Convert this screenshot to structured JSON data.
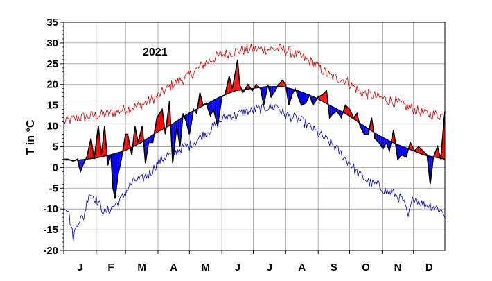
{
  "chart_data": {
    "type": "line",
    "title": "2021",
    "xlabel": "",
    "ylabel": "T in °C",
    "ylim": [
      -20,
      35
    ],
    "yticks": [
      35,
      30,
      25,
      20,
      15,
      10,
      5,
      0,
      -5,
      -10,
      -15,
      -20
    ],
    "months": [
      "J",
      "F",
      "M",
      "A",
      "M",
      "J",
      "J",
      "A",
      "S",
      "O",
      "N",
      "D"
    ],
    "grid": true,
    "colors": {
      "actual_line": "#000000",
      "above_normal_fill": "#ff0000",
      "below_normal_fill": "#0000ff",
      "record_high": "#cc0000",
      "record_low": "#0000aa",
      "grid": "#999999"
    },
    "series": [
      {
        "role": "record_high",
        "keypoints": [
          [
            1,
            11
          ],
          [
            15,
            12
          ],
          [
            30,
            12.5
          ],
          [
            45,
            13
          ],
          [
            59,
            14
          ],
          [
            75,
            15
          ],
          [
            90,
            17
          ],
          [
            105,
            20
          ],
          [
            120,
            22
          ],
          [
            135,
            25
          ],
          [
            150,
            27
          ],
          [
            165,
            28
          ],
          [
            180,
            28.5
          ],
          [
            195,
            28.5
          ],
          [
            210,
            28.5
          ],
          [
            225,
            27
          ],
          [
            240,
            25
          ],
          [
            255,
            22
          ],
          [
            270,
            21
          ],
          [
            285,
            18
          ],
          [
            300,
            17
          ],
          [
            315,
            16
          ],
          [
            330,
            14.5
          ],
          [
            345,
            13
          ],
          [
            365,
            12.5
          ]
        ]
      },
      {
        "role": "normal",
        "keypoints": [
          [
            1,
            1.8
          ],
          [
            15,
            1.8
          ],
          [
            30,
            2.2
          ],
          [
            45,
            3
          ],
          [
            59,
            4
          ],
          [
            75,
            6
          ],
          [
            90,
            8.5
          ],
          [
            105,
            10.5
          ],
          [
            120,
            13
          ],
          [
            135,
            15
          ],
          [
            150,
            17
          ],
          [
            165,
            18.5
          ],
          [
            180,
            19
          ],
          [
            195,
            19.5
          ],
          [
            210,
            19.5
          ],
          [
            225,
            18.5
          ],
          [
            240,
            17
          ],
          [
            255,
            15
          ],
          [
            270,
            13
          ],
          [
            285,
            10.5
          ],
          [
            300,
            8
          ],
          [
            315,
            6
          ],
          [
            330,
            4.5
          ],
          [
            345,
            3
          ],
          [
            365,
            2
          ]
        ]
      },
      {
        "role": "actual",
        "keypoints": [
          [
            1,
            2
          ],
          [
            5,
            2
          ],
          [
            10,
            1.5
          ],
          [
            14,
            2
          ],
          [
            17,
            -1
          ],
          [
            20,
            1
          ],
          [
            23,
            2.5
          ],
          [
            27,
            7
          ],
          [
            30,
            2
          ],
          [
            34,
            10
          ],
          [
            37,
            3
          ],
          [
            40,
            10
          ],
          [
            43,
            0.5
          ],
          [
            46,
            3
          ],
          [
            48,
            -5
          ],
          [
            50,
            -7.5
          ],
          [
            53,
            -1.5
          ],
          [
            56,
            2
          ],
          [
            60,
            8
          ],
          [
            62,
            8
          ],
          [
            66,
            3
          ],
          [
            69,
            10
          ],
          [
            72,
            6
          ],
          [
            76,
            10
          ],
          [
            79,
            1
          ],
          [
            82,
            6
          ],
          [
            86,
            6
          ],
          [
            90,
            12
          ],
          [
            95,
            14
          ],
          [
            98,
            8
          ],
          [
            102,
            16
          ],
          [
            105,
            1
          ],
          [
            109,
            10
          ],
          [
            112,
            5
          ],
          [
            115,
            13
          ],
          [
            118,
            11
          ],
          [
            121,
            8
          ],
          [
            125,
            14
          ],
          [
            128,
            13
          ],
          [
            131,
            18
          ],
          [
            134,
            15
          ],
          [
            137,
            15.5
          ],
          [
            141,
            12.5
          ],
          [
            144,
            14
          ],
          [
            148,
            10
          ],
          [
            152,
            17
          ],
          [
            155,
            17.5
          ],
          [
            159,
            22
          ],
          [
            162,
            19
          ],
          [
            165,
            23
          ],
          [
            167,
            26
          ],
          [
            169,
            20
          ],
          [
            172,
            18
          ],
          [
            177,
            20
          ],
          [
            181,
            18.5
          ],
          [
            185,
            20
          ],
          [
            189,
            19
          ],
          [
            192,
            15
          ],
          [
            196,
            20
          ],
          [
            199,
            17
          ],
          [
            203,
            18.5
          ],
          [
            206,
            20
          ],
          [
            210,
            21
          ],
          [
            213,
            20
          ],
          [
            216,
            15
          ],
          [
            219,
            17.5
          ],
          [
            222,
            19
          ],
          [
            225,
            17
          ],
          [
            228,
            15
          ],
          [
            232,
            15.5
          ],
          [
            236,
            17.5
          ],
          [
            239,
            15
          ],
          [
            244,
            17
          ],
          [
            248,
            17.5
          ],
          [
            252,
            18.5
          ],
          [
            255,
            12
          ],
          [
            258,
            13
          ],
          [
            262,
            13.5
          ],
          [
            266,
            12
          ],
          [
            270,
            15
          ],
          [
            274,
            14
          ],
          [
            278,
            12
          ],
          [
            281,
            13
          ],
          [
            284,
            10
          ],
          [
            288,
            8
          ],
          [
            292,
            8
          ],
          [
            295,
            12
          ],
          [
            298,
            7
          ],
          [
            302,
            6
          ],
          [
            306,
            4.5
          ],
          [
            309,
            6
          ],
          [
            312,
            4
          ],
          [
            316,
            9
          ],
          [
            320,
            2
          ],
          [
            324,
            3
          ],
          [
            328,
            2.5
          ],
          [
            332,
            6
          ],
          [
            336,
            4
          ],
          [
            340,
            5
          ],
          [
            344,
            4
          ],
          [
            348,
            3
          ],
          [
            351,
            -4
          ],
          [
            354,
            2.5
          ],
          [
            358,
            5
          ],
          [
            361,
            2
          ],
          [
            365,
            13.5
          ]
        ]
      },
      {
        "role": "record_low",
        "keypoints": [
          [
            1,
            -9
          ],
          [
            5,
            -10
          ],
          [
            10,
            -17
          ],
          [
            14,
            -13
          ],
          [
            20,
            -12
          ],
          [
            25,
            -6
          ],
          [
            30,
            -7
          ],
          [
            35,
            -9
          ],
          [
            40,
            -11
          ],
          [
            45,
            -10
          ],
          [
            50,
            -9
          ],
          [
            55,
            -8
          ],
          [
            60,
            -6
          ],
          [
            65,
            -4
          ],
          [
            70,
            -3
          ],
          [
            75,
            -3
          ],
          [
            80,
            -2
          ],
          [
            85,
            -1
          ],
          [
            90,
            1
          ],
          [
            95,
            2
          ],
          [
            100,
            3
          ],
          [
            105,
            3
          ],
          [
            110,
            4
          ],
          [
            115,
            5
          ],
          [
            120,
            5
          ],
          [
            125,
            6
          ],
          [
            130,
            7
          ],
          [
            135,
            8
          ],
          [
            140,
            9
          ],
          [
            145,
            10
          ],
          [
            150,
            11
          ],
          [
            155,
            12
          ],
          [
            160,
            12.5
          ],
          [
            165,
            12.5
          ],
          [
            170,
            13
          ],
          [
            175,
            13.5
          ],
          [
            180,
            13.5
          ],
          [
            185,
            14
          ],
          [
            190,
            14
          ],
          [
            195,
            14.5
          ],
          [
            200,
            14.5
          ],
          [
            205,
            15
          ],
          [
            210,
            13
          ],
          [
            215,
            12.5
          ],
          [
            220,
            12
          ],
          [
            225,
            11.5
          ],
          [
            230,
            11
          ],
          [
            235,
            10
          ],
          [
            240,
            9
          ],
          [
            245,
            8
          ],
          [
            250,
            7
          ],
          [
            255,
            6
          ],
          [
            260,
            5
          ],
          [
            265,
            3.5
          ],
          [
            270,
            2
          ],
          [
            275,
            1
          ],
          [
            280,
            -1
          ],
          [
            285,
            -2
          ],
          [
            290,
            -3
          ],
          [
            295,
            -4
          ],
          [
            300,
            -4
          ],
          [
            305,
            -5
          ],
          [
            310,
            -6
          ],
          [
            315,
            -6
          ],
          [
            320,
            -7
          ],
          [
            325,
            -8
          ],
          [
            330,
            -12
          ],
          [
            335,
            -7
          ],
          [
            340,
            -8
          ],
          [
            345,
            -9
          ],
          [
            350,
            -9
          ],
          [
            355,
            -9.5
          ],
          [
            360,
            -10
          ],
          [
            365,
            -11.5
          ]
        ]
      }
    ]
  }
}
